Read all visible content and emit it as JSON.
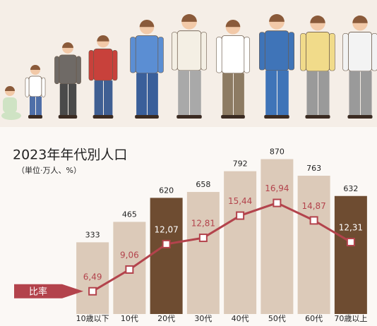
{
  "chart_data": {
    "type": "bar",
    "title": "2023年年代別人口",
    "subtitle": "（単位·万人、%）",
    "categories": [
      "10歳以下",
      "10代",
      "20代",
      "30代",
      "40代",
      "50代",
      "60代",
      "70歳以上"
    ],
    "ylim": [
      -130,
      1000
    ],
    "y2lim": [
      3.8,
      24.5
    ],
    "series": [
      {
        "name": null,
        "type": "bar",
        "colors": [
          "#dccab9",
          "#dccab9",
          "#6e4c31",
          "#dccab9",
          "#dccab9",
          "#dccab9",
          "#dccab9",
          "#6e4c31"
        ],
        "values": [
          333,
          465,
          620,
          658,
          792,
          870,
          763,
          632
        ]
      },
      {
        "name": "比率",
        "type": "line",
        "axis": "y2",
        "color": "#b3434c",
        "values": [
          6.49,
          9.06,
          12.07,
          12.81,
          15.44,
          16.94,
          14.87,
          12.31
        ],
        "value_labels": [
          "6,49",
          "9,06",
          "12,07",
          "12,81",
          "15,44",
          "16,94",
          "14,87",
          "12,31"
        ]
      }
    ]
  }
}
